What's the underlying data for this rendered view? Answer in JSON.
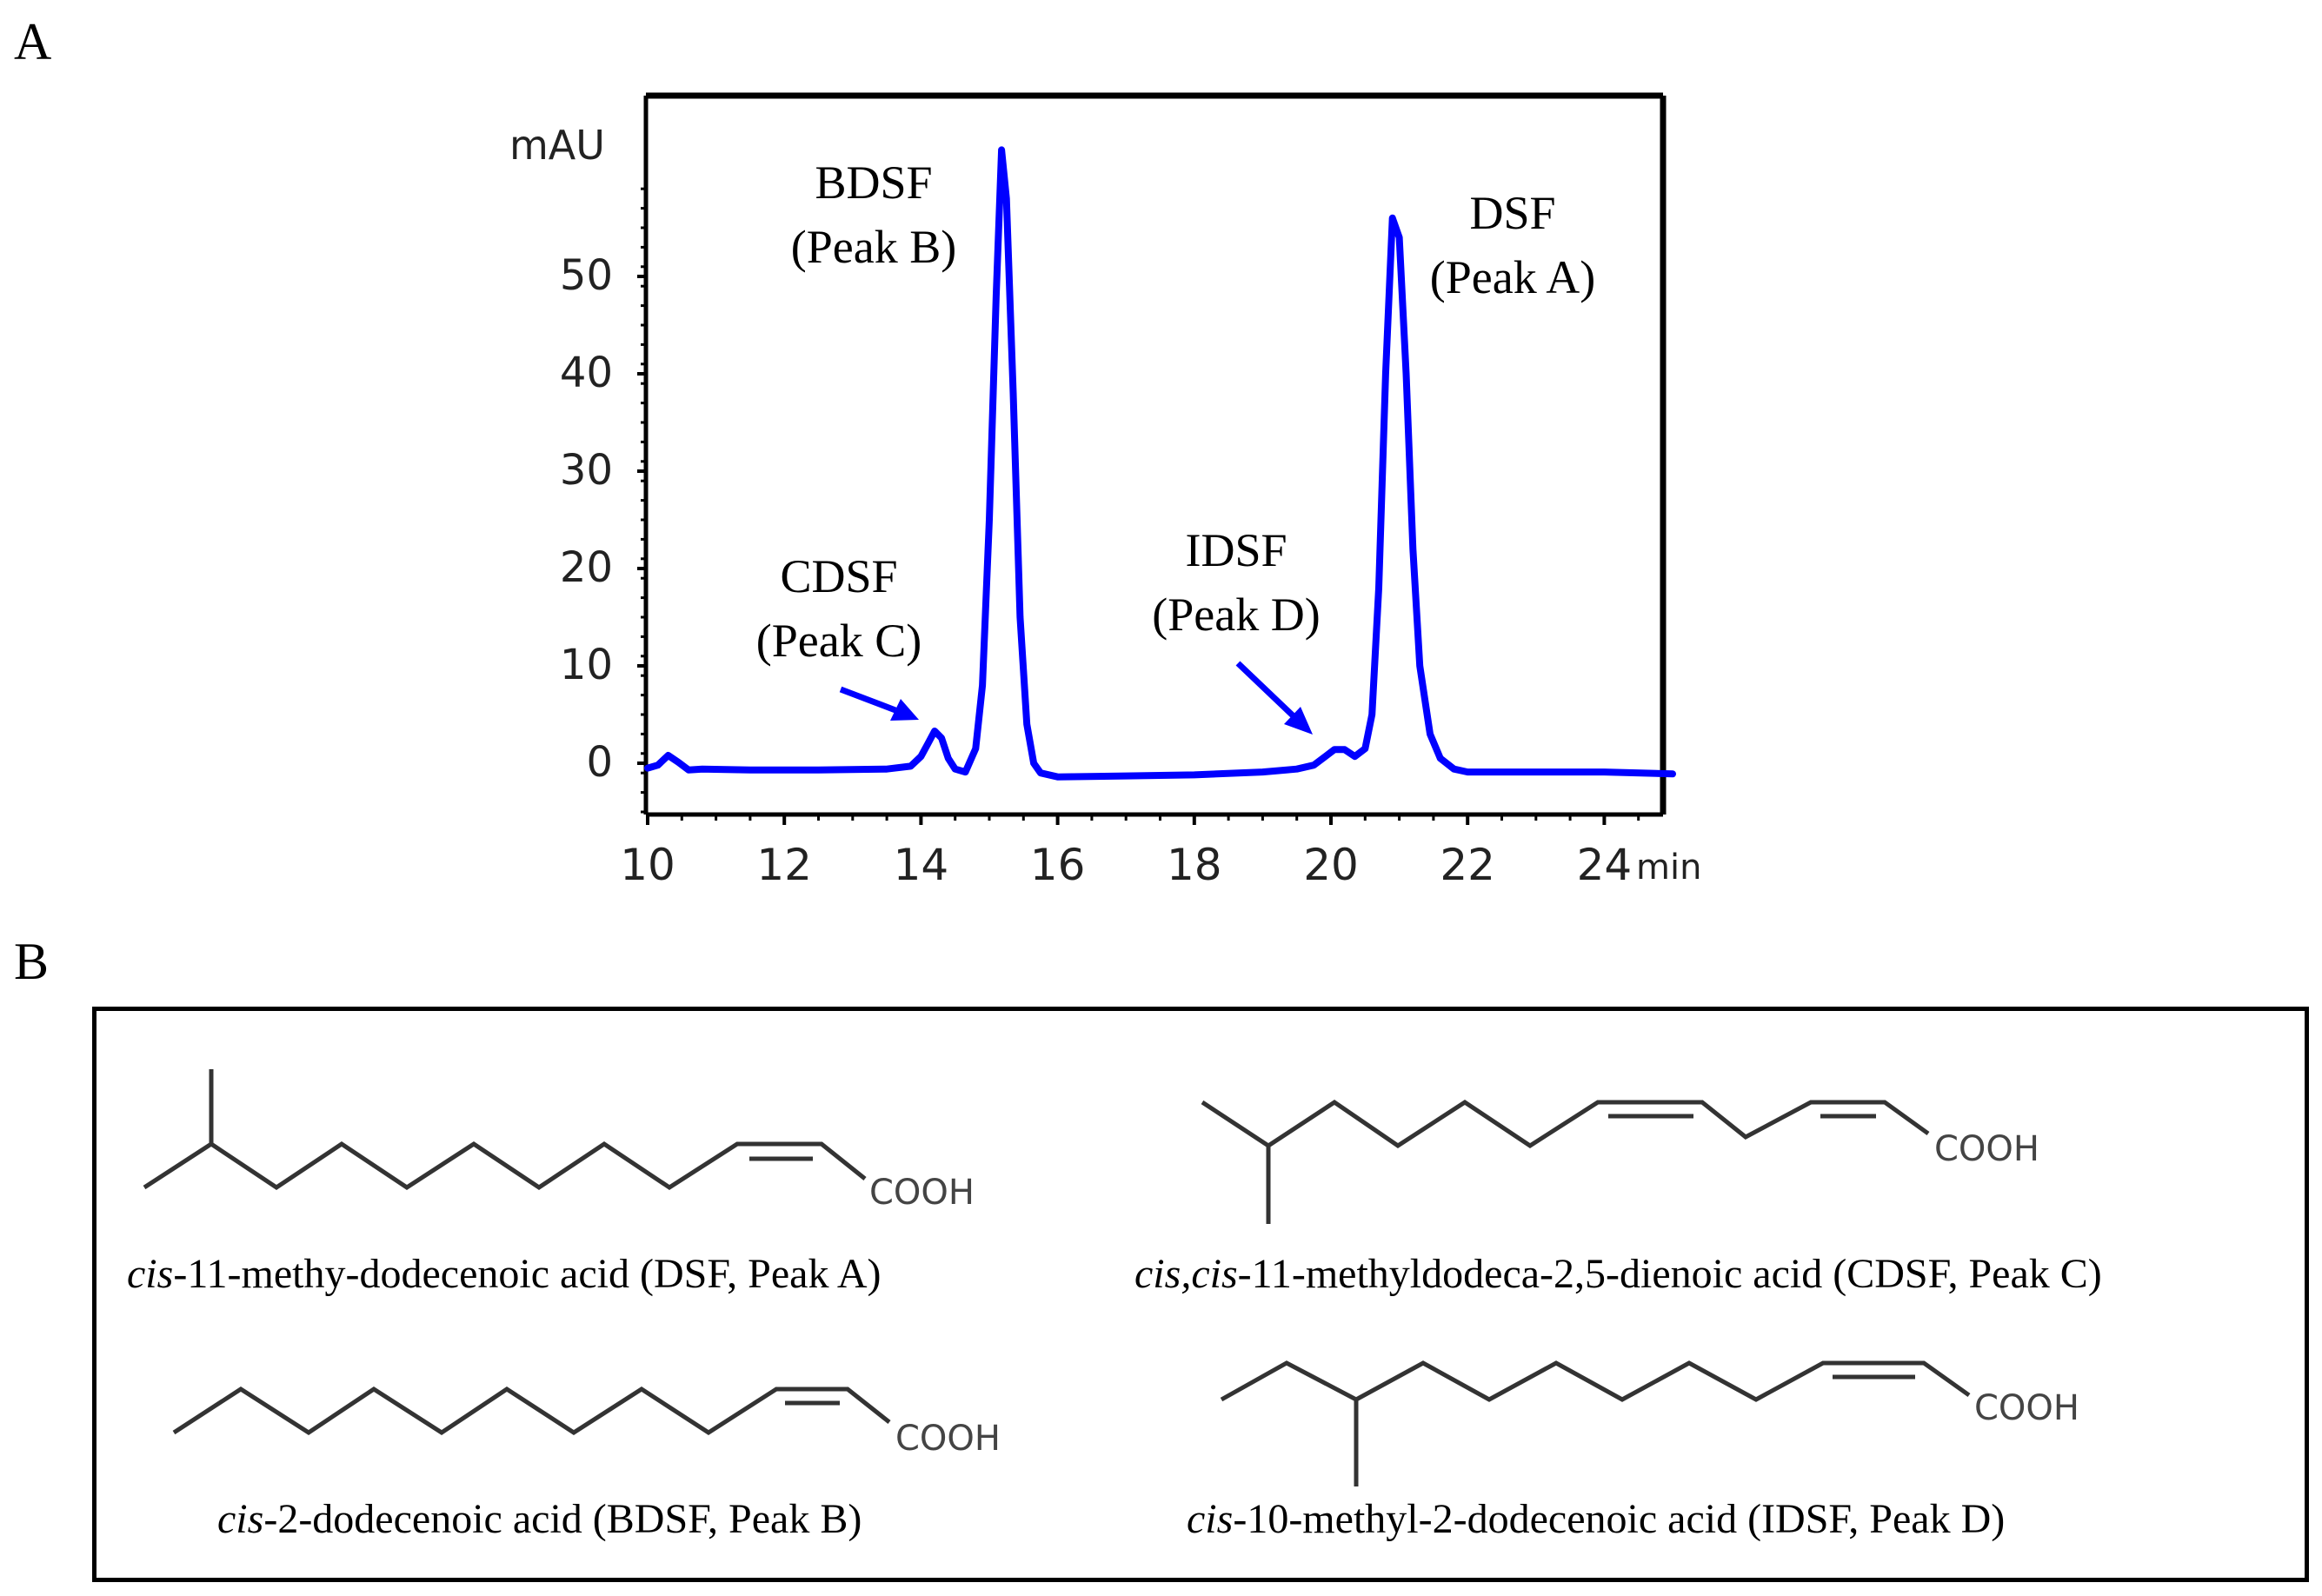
{
  "panels": {
    "a": "A",
    "b": "B"
  },
  "chart_data": {
    "type": "line",
    "xlabel": "min",
    "ylabel": "mAU",
    "xlim": [
      10,
      25
    ],
    "ylim": [
      -5,
      62
    ],
    "x_ticks": [
      10,
      12,
      14,
      16,
      18,
      20,
      22,
      24
    ],
    "y_ticks": [
      0,
      10,
      20,
      30,
      40,
      50
    ],
    "color": "#0000ff",
    "series": [
      {
        "x": [
          10.0,
          10.15,
          10.3,
          10.45,
          10.6,
          10.8,
          11.5,
          12.5,
          13.5,
          13.85,
          14.0,
          14.1,
          14.2,
          14.3,
          14.4,
          14.5,
          14.65,
          14.8,
          14.9,
          15.0,
          15.1,
          15.18,
          15.25,
          15.35,
          15.45,
          15.55,
          15.65,
          15.75,
          16.0,
          17.0,
          18.0,
          19.0,
          19.5,
          19.75,
          19.9,
          20.05,
          20.2,
          20.35,
          20.5,
          20.6,
          20.7,
          20.8,
          20.9,
          21.0,
          21.1,
          21.2,
          21.3,
          21.45,
          21.6,
          21.8,
          22.0,
          23.0,
          24.0,
          25.0
        ],
        "y": [
          -0.5,
          -0.2,
          0.8,
          0.1,
          -0.7,
          -0.6,
          -0.7,
          -0.7,
          -0.6,
          -0.3,
          0.7,
          2.0,
          3.3,
          2.6,
          0.5,
          -0.6,
          -0.9,
          1.5,
          8.0,
          25.0,
          48.0,
          63.0,
          58.0,
          38.0,
          15.0,
          4.0,
          0.0,
          -1.0,
          -1.4,
          -1.3,
          -1.2,
          -0.9,
          -0.6,
          -0.2,
          0.6,
          1.4,
          1.4,
          0.7,
          1.5,
          5.0,
          18.0,
          40.0,
          56.0,
          54.0,
          40.0,
          22.0,
          10.0,
          3.0,
          0.5,
          -0.6,
          -0.9,
          -0.9,
          -0.9,
          -1.1
        ]
      }
    ],
    "annotations": [
      {
        "line1": "BDSF",
        "line2": "(Peak B)"
      },
      {
        "line1": "DSF",
        "line2": "(Peak A)"
      },
      {
        "line1": "CDSF",
        "line2": "(Peak C)"
      },
      {
        "line1": "IDSF",
        "line2": "(Peak D)"
      }
    ]
  },
  "structures": {
    "cooh": "COOH",
    "items": [
      {
        "italic": "cis",
        "rest": "-11-methy-dodecenoic acid (DSF, Peak A)"
      },
      {
        "italic": "cis,cis",
        "rest": "-11-methyldodeca-2,5-dienoic acid (CDSF, Peak C)"
      },
      {
        "italic": "cis",
        "rest": "-2-dodecenoic acid (BDSF, Peak B)"
      },
      {
        "italic": "cis",
        "rest": "-10-methyl-2-dodecenoic acid (IDSF, Peak D)"
      }
    ]
  }
}
